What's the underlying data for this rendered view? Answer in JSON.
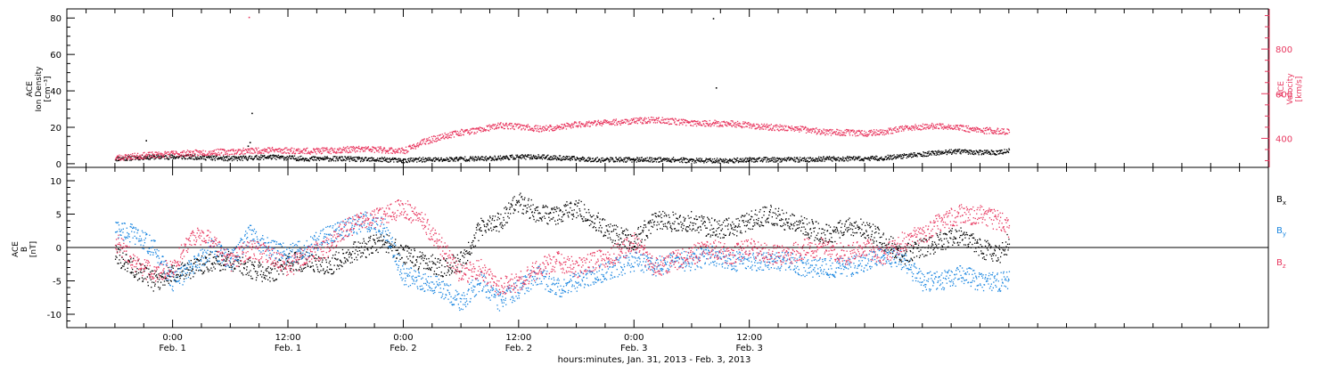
{
  "colors": {
    "black": "#000000",
    "pink": "#e8375f",
    "blue": "#1a86e0"
  },
  "chart_data": [
    {
      "type": "scatter",
      "panel": "upper",
      "ylabel_left": [
        "ACE",
        "Ion Density",
        "[cm⁻³]"
      ],
      "ylabel_right": [
        "ACE",
        "Velocity",
        "[km/s]"
      ],
      "ylim_left": [
        -2,
        85
      ],
      "ylim_right": [
        270,
        980
      ],
      "yticks_left": [
        "0",
        "20",
        "40",
        "60",
        "80"
      ],
      "yticks_right": [
        "400",
        "600",
        "800"
      ],
      "series": [
        {
          "axis": "left",
          "color": "#000000",
          "x": [
            -6,
            -4,
            -2,
            0,
            2,
            4,
            6,
            8,
            10,
            12,
            14,
            16,
            18,
            20,
            22,
            24,
            26,
            28,
            30,
            32,
            34,
            36,
            38,
            40,
            42,
            44,
            46,
            48,
            50,
            52,
            54,
            56,
            58,
            60,
            62,
            64,
            66,
            68,
            70,
            72,
            74,
            76,
            78,
            80,
            82,
            84,
            86,
            87
          ],
          "y": [
            3,
            3.5,
            4,
            4,
            4,
            3.5,
            3,
            3.5,
            4,
            3.5,
            3,
            3,
            3,
            2.5,
            2.5,
            2,
            2.5,
            2.5,
            3,
            3,
            3.5,
            4,
            4,
            3.5,
            3,
            2.5,
            2.5,
            2.5,
            2.5,
            2.5,
            2,
            2,
            2,
            2.5,
            2.5,
            2.5,
            2.5,
            3,
            3,
            3,
            3.5,
            4.5,
            5.5,
            6.5,
            7,
            6.5,
            6.5,
            7.5
          ]
        },
        {
          "axis": "right",
          "color": "#e8375f",
          "x": [
            -6,
            -4,
            -2,
            0,
            2,
            4,
            6,
            8,
            10,
            12,
            14,
            16,
            18,
            20,
            22,
            24,
            26,
            28,
            30,
            32,
            34,
            36,
            38,
            40,
            42,
            44,
            46,
            48,
            50,
            52,
            54,
            56,
            58,
            60,
            62,
            64,
            66,
            68,
            70,
            72,
            74,
            76,
            78,
            80,
            82,
            84,
            86,
            87
          ],
          "y": [
            315,
            322,
            328,
            333,
            336,
            340,
            342,
            346,
            350,
            348,
            345,
            347,
            352,
            354,
            350,
            345,
            385,
            410,
            430,
            440,
            460,
            455,
            445,
            450,
            465,
            470,
            475,
            480,
            485,
            478,
            472,
            470,
            468,
            460,
            452,
            448,
            440,
            430,
            428,
            425,
            432,
            445,
            455,
            458,
            448,
            438,
            435,
            430
          ]
        },
        {
          "axis": "left",
          "color": "#000000",
          "x": [
            -2.8,
            7.8,
            8.0,
            8.2,
            56.2,
            56.5
          ],
          "y": [
            13,
            10,
            12,
            28,
            80,
            42
          ]
        },
        {
          "axis": "right",
          "color": "#e8375f",
          "x": [
            7.9
          ],
          "y": [
            945
          ]
        }
      ]
    },
    {
      "type": "scatter",
      "panel": "lower",
      "ylabel_left": [
        "ACE",
        "B",
        "[nT]"
      ],
      "ylim": [
        -12,
        12
      ],
      "yticks": [
        "10",
        "5",
        "0",
        "-5",
        "-10"
      ],
      "legend": [
        {
          "label": "B",
          "sub": "x",
          "color": "#000000"
        },
        {
          "label": "B",
          "sub": "y",
          "color": "#1a86e0"
        },
        {
          "label": "B",
          "sub": "z",
          "color": "#e8375f"
        }
      ],
      "series": [
        {
          "name": "Bx",
          "color": "#000000",
          "x": [
            -6,
            -4,
            -2,
            0,
            2,
            4,
            6,
            8,
            10,
            12,
            14,
            16,
            18,
            20,
            22,
            24,
            26,
            28,
            30,
            32,
            34,
            36,
            38,
            40,
            42,
            44,
            46,
            48,
            50,
            52,
            54,
            56,
            58,
            60,
            62,
            64,
            66,
            68,
            70,
            72,
            74,
            76,
            78,
            80,
            82,
            84,
            86,
            87
          ],
          "y": [
            -1,
            -3,
            -5,
            -4,
            -3,
            -2,
            -2,
            -3,
            -4,
            -2,
            -2,
            -3,
            -1,
            0,
            1,
            -1,
            -2,
            -3,
            -2,
            3,
            4,
            7,
            5,
            5,
            6,
            4,
            2,
            1,
            4,
            4,
            4,
            3,
            3,
            4,
            5,
            4,
            3,
            2,
            3,
            3,
            1,
            -1,
            0,
            1,
            2,
            0,
            -1,
            1
          ]
        },
        {
          "name": "By",
          "color": "#1a86e0",
          "x": [
            -6,
            -4,
            -2,
            0,
            2,
            4,
            6,
            8,
            10,
            12,
            14,
            16,
            18,
            20,
            22,
            24,
            26,
            28,
            30,
            32,
            34,
            36,
            38,
            40,
            42,
            44,
            46,
            48,
            50,
            52,
            54,
            56,
            58,
            60,
            62,
            64,
            66,
            68,
            70,
            72,
            74,
            76,
            78,
            80,
            82,
            84,
            86,
            87
          ],
          "y": [
            3,
            2,
            0,
            -5,
            -3,
            0,
            -2,
            2,
            0,
            -1,
            0,
            2,
            3,
            4,
            3,
            -4,
            -5,
            -6,
            -8,
            -5,
            -8,
            -6,
            -4,
            -6,
            -5,
            -4,
            -3,
            -2,
            -3,
            -2,
            -2,
            -1,
            -2,
            -2,
            -2,
            -2,
            -3,
            -3,
            -3,
            -2,
            -1,
            -2,
            -5,
            -5,
            -4,
            -5,
            -5,
            -5
          ]
        },
        {
          "name": "Bz",
          "color": "#e8375f",
          "x": [
            -6,
            -4,
            -2,
            0,
            2,
            4,
            6,
            8,
            10,
            12,
            14,
            16,
            18,
            20,
            22,
            24,
            26,
            28,
            30,
            32,
            34,
            36,
            38,
            40,
            42,
            44,
            46,
            48,
            50,
            52,
            54,
            56,
            58,
            60,
            62,
            64,
            66,
            68,
            70,
            72,
            74,
            76,
            78,
            80,
            82,
            84,
            86,
            87
          ],
          "y": [
            1,
            -2,
            -4,
            -3,
            2,
            1,
            -2,
            0,
            -1,
            -3,
            -1,
            0,
            3,
            4,
            5,
            6,
            4,
            0,
            -4,
            -3,
            -6,
            -5,
            -3,
            -2,
            -3,
            -2,
            -1,
            1,
            -3,
            -2,
            -1,
            0,
            -1,
            0,
            -1,
            -1,
            0,
            0,
            -1,
            0,
            -1,
            1,
            2,
            4,
            5,
            5,
            4,
            3
          ]
        }
      ]
    }
  ],
  "x_axis": {
    "xlim": [
      -11,
      114
    ],
    "ticks": [
      {
        "x": 0,
        "time": "0:00",
        "date": "Feb. 1"
      },
      {
        "x": 12,
        "time": "12:00",
        "date": "Feb. 1"
      },
      {
        "x": 24,
        "time": "0:00",
        "date": "Feb. 2"
      },
      {
        "x": 36,
        "time": "12:00",
        "date": "Feb. 2"
      },
      {
        "x": 48,
        "time": "0:00",
        "date": "Feb. 3"
      },
      {
        "x": 60,
        "time": "12:00",
        "date": "Feb. 3"
      }
    ],
    "title": "hours:minutes, Jan. 31, 2013 - Feb.  3, 2013"
  }
}
